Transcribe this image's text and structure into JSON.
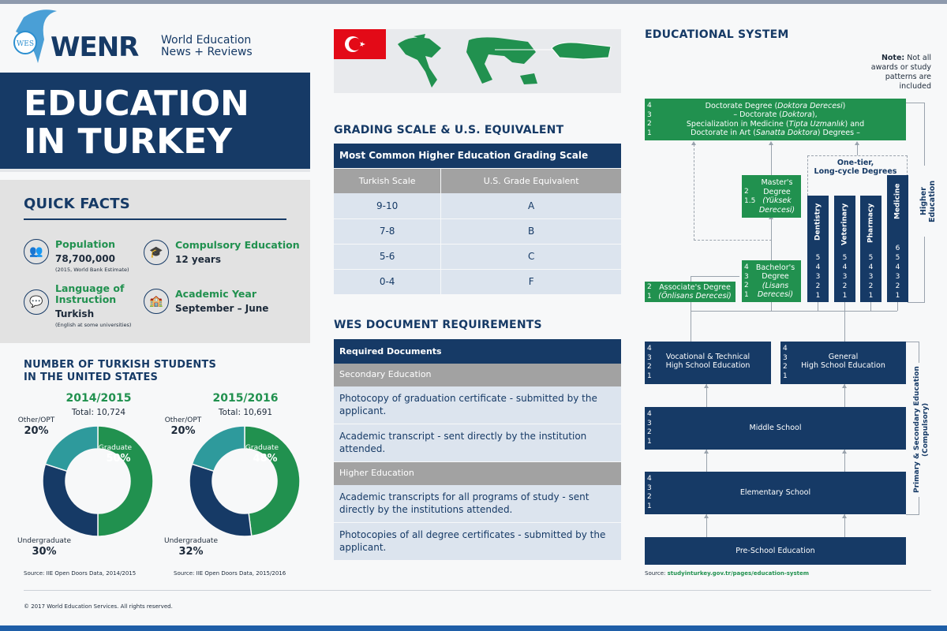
{
  "header": {
    "logo_text": "WENR",
    "logo_mark": "WES",
    "tagline_1": "World Education",
    "tagline_2": "News + Reviews"
  },
  "title": {
    "line1": "EDUCATION",
    "line2": "IN TURKEY"
  },
  "quick_facts": {
    "heading": "QUICK FACTS",
    "items": [
      {
        "icon": "people-icon",
        "label": "Population",
        "value": "78,700,000",
        "note": "(2015, World Bank Estimate)"
      },
      {
        "icon": "graduation-cap-icon",
        "label": "Compulsory Education",
        "value": "12 years",
        "note": ""
      },
      {
        "icon": "speech-icon",
        "label": "Language of Instruction",
        "value": "Turkish",
        "note": "(English at some universities)"
      },
      {
        "icon": "school-building-icon",
        "label": "Academic Year",
        "value": "September – June",
        "note": ""
      }
    ]
  },
  "students": {
    "heading_1": "NUMBER OF TURKISH STUDENTS",
    "heading_2": "IN THE UNITED STATES"
  },
  "chart_data": [
    {
      "type": "pie",
      "donut": true,
      "title": "2014/2015",
      "subtitle": "Total: 10,724",
      "categories": [
        "Graduate",
        "Undergraduate",
        "Other/OPT"
      ],
      "values": [
        50,
        30,
        20
      ],
      "unit": "%",
      "colors": [
        "#21914f",
        "#163a66",
        "#2e9a9c"
      ],
      "source": "Source: IIE Open Doors Data, 2014/2015"
    },
    {
      "type": "pie",
      "donut": true,
      "title": "2015/2016",
      "subtitle": "Total: 10,691",
      "categories": [
        "Graduate",
        "Undergraduate",
        "Other/OPT"
      ],
      "values": [
        48,
        32,
        20
      ],
      "unit": "%",
      "colors": [
        "#21914f",
        "#163a66",
        "#2e9a9c"
      ],
      "source": "Source: IIE Open Doors Data, 2015/2016"
    }
  ],
  "grading": {
    "heading": "GRADING SCALE & U.S. EQUIVALENT",
    "table_title": "Most Common Higher Education Grading Scale",
    "columns": [
      "Turkish Scale",
      "U.S. Grade Equivalent"
    ],
    "rows": [
      [
        "9-10",
        "A"
      ],
      [
        "7-8",
        "B"
      ],
      [
        "5-6",
        "C"
      ],
      [
        "0-4",
        "F"
      ]
    ]
  },
  "documents": {
    "heading": "WES DOCUMENT REQUIREMENTS",
    "table_title": "Required Documents",
    "sections": [
      {
        "name": "Secondary Education",
        "items": [
          "Photocopy of graduation certificate - submitted by the applicant.",
          "Academic transcript - sent directly by the institution attended."
        ]
      },
      {
        "name": "Higher Education",
        "items": [
          "Academic transcripts for all programs of study - sent directly by the institutions attended.",
          "Photocopies of all degree certificates - submitted by the applicant."
        ]
      }
    ]
  },
  "system": {
    "heading": "EDUCATIONAL SYSTEM",
    "note_bold": "Note:",
    "note": " Not all awards or study patterns are included",
    "doctorate": {
      "years": "4\n3\n2\n1",
      "l1a": "Doctorate Degree (",
      "l1i": "Doktora Derecesi",
      "l1b": ")",
      "l2a": "– Doctorate (",
      "l2i": "Doktora",
      "l2b": "),",
      "l3a": "Specialization in Medicine (",
      "l3i": "Tipta Uzmanlık",
      "l3b": ") and",
      "l4a": "Doctorate in Art (",
      "l4i": "Sanatta Doktora",
      "l4b": ") Degrees –"
    },
    "masters": {
      "years": "2\n1.5",
      "l1": "Master's",
      "l2": "Degree",
      "l3": "(Yüksek",
      "l4": "Derecesi)"
    },
    "bachelors": {
      "years": "4\n3\n2\n1",
      "l1": "Bachelor's",
      "l2": "Degree",
      "l3": "(Lisans",
      "l4": "Derecesi)"
    },
    "associates": {
      "years": "2\n1",
      "l1": "Associate's Degree",
      "l2": "(Önlisans Derecesi)"
    },
    "one_tier": "One-tier,\nLong-cycle Degrees",
    "long_cycle": [
      {
        "name": "Dentistry",
        "years": "5\n4\n3\n2\n1"
      },
      {
        "name": "Veterinary",
        "years": "5\n4\n3\n2\n1"
      },
      {
        "name": "Pharmacy",
        "years": "5\n4\n3\n2\n1"
      },
      {
        "name": "Medicine",
        "years": "6\n5\n4\n3\n2\n1"
      }
    ],
    "higher_education": "Higher Education",
    "vocational": {
      "years": "4\n3\n2\n1",
      "label": "Vocational & Technical\nHigh School Education"
    },
    "general": {
      "years": "4\n3\n2\n1",
      "label": "General\nHigh School Education"
    },
    "middle": {
      "years": "4\n3\n2\n1",
      "label": "Middle School"
    },
    "elementary": {
      "years": "4\n3\n2\n1",
      "label": "Elementary School"
    },
    "preschool": {
      "label": "Pre-School Education"
    },
    "compulsory": "Primary & Secondary Education\n(Compulsory)",
    "source_label": "Source: ",
    "source_link": "studyinturkey.gov.tr/pages/education-system"
  },
  "footer": {
    "copyright": "© 2017 World Education Services. All rights reserved."
  },
  "colors": {
    "navy": "#163a66",
    "green": "#21914f",
    "teal": "#2e9a9c",
    "gray": "#a2a2a2",
    "flag_red": "#e30a17"
  }
}
